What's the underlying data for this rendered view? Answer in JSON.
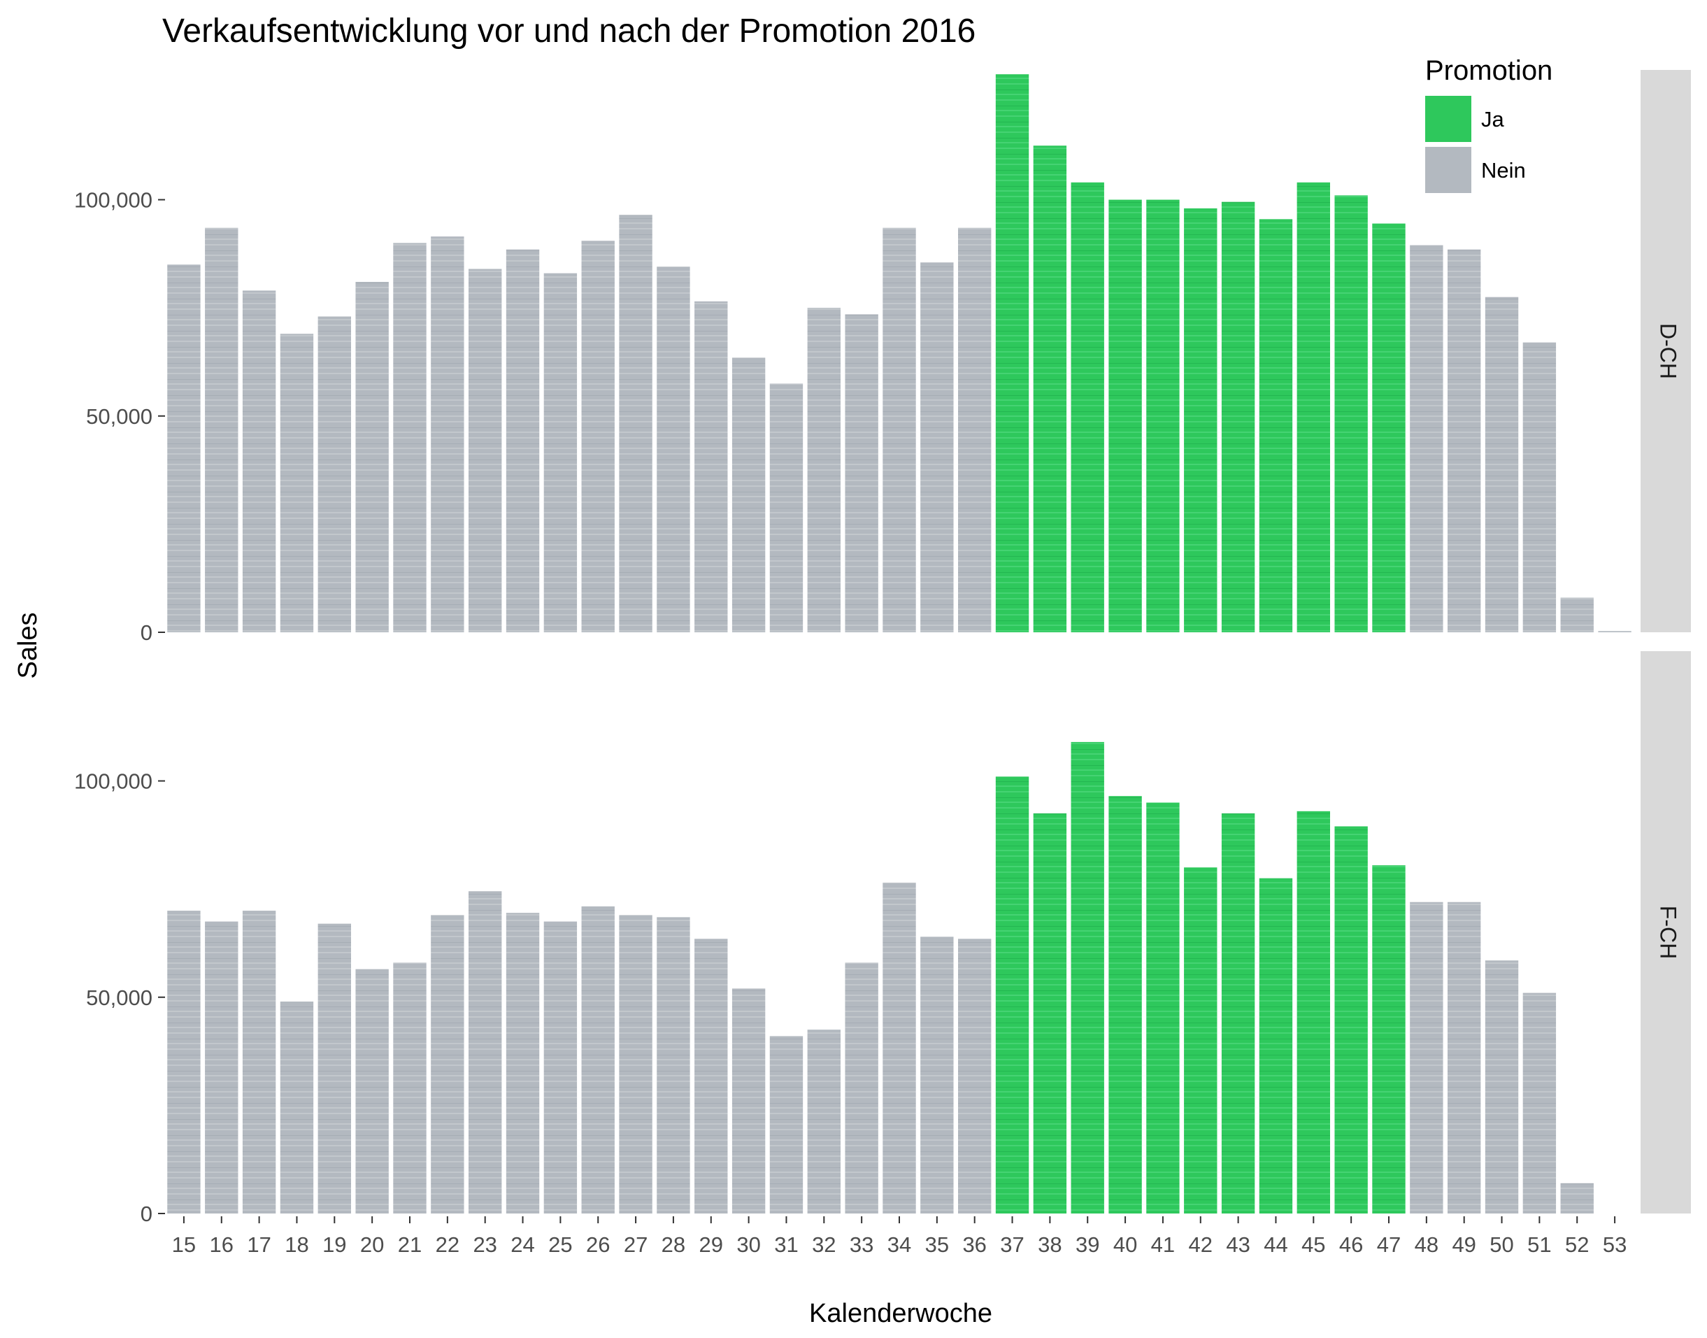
{
  "chart_data": {
    "type": "bar",
    "title": "Verkaufsentwicklung vor und nach der Promotion 2016",
    "xlabel": "Kalenderwoche",
    "ylabel": "Sales",
    "ylim": [
      0,
      130000
    ],
    "yticks": [
      0,
      50000,
      100000
    ],
    "ytick_labels": [
      "0",
      "50,000",
      "100,000"
    ],
    "categories": [
      "15",
      "16",
      "17",
      "18",
      "19",
      "20",
      "21",
      "22",
      "23",
      "24",
      "25",
      "26",
      "27",
      "28",
      "29",
      "30",
      "31",
      "32",
      "33",
      "34",
      "35",
      "36",
      "37",
      "38",
      "39",
      "40",
      "41",
      "42",
      "43",
      "44",
      "45",
      "46",
      "47",
      "48",
      "49",
      "50",
      "51",
      "52",
      "53"
    ],
    "grid": false,
    "legend": {
      "title": "Promotion",
      "position": "top-right",
      "items": [
        {
          "label": "Ja",
          "color": "#2ec85c"
        },
        {
          "label": "Nein",
          "color": "#b3b9c0"
        }
      ]
    },
    "promotion_weeks": [
      "37",
      "38",
      "39",
      "40",
      "41",
      "42",
      "43",
      "44",
      "45",
      "46",
      "47"
    ],
    "series": [
      {
        "name": "D-CH",
        "values": [
          85000,
          93500,
          79000,
          69000,
          73000,
          81000,
          90000,
          91500,
          84000,
          88500,
          83000,
          90500,
          96500,
          84500,
          76500,
          63500,
          57500,
          75000,
          73500,
          93500,
          85500,
          93500,
          129000,
          112500,
          104000,
          100000,
          100000,
          98000,
          99500,
          95500,
          104000,
          101000,
          94500,
          89500,
          88500,
          77500,
          67000,
          8000,
          300
        ]
      },
      {
        "name": "F-CH",
        "values": [
          70000,
          67500,
          70000,
          49000,
          67000,
          56500,
          58000,
          69000,
          74500,
          69500,
          67500,
          71000,
          69000,
          68500,
          63500,
          52000,
          41000,
          42500,
          58000,
          76500,
          64000,
          63500,
          101000,
          92500,
          109000,
          96500,
          95000,
          80000,
          92500,
          77500,
          93000,
          89500,
          80500,
          72000,
          72000,
          58500,
          51000,
          7000,
          null
        ]
      }
    ]
  }
}
